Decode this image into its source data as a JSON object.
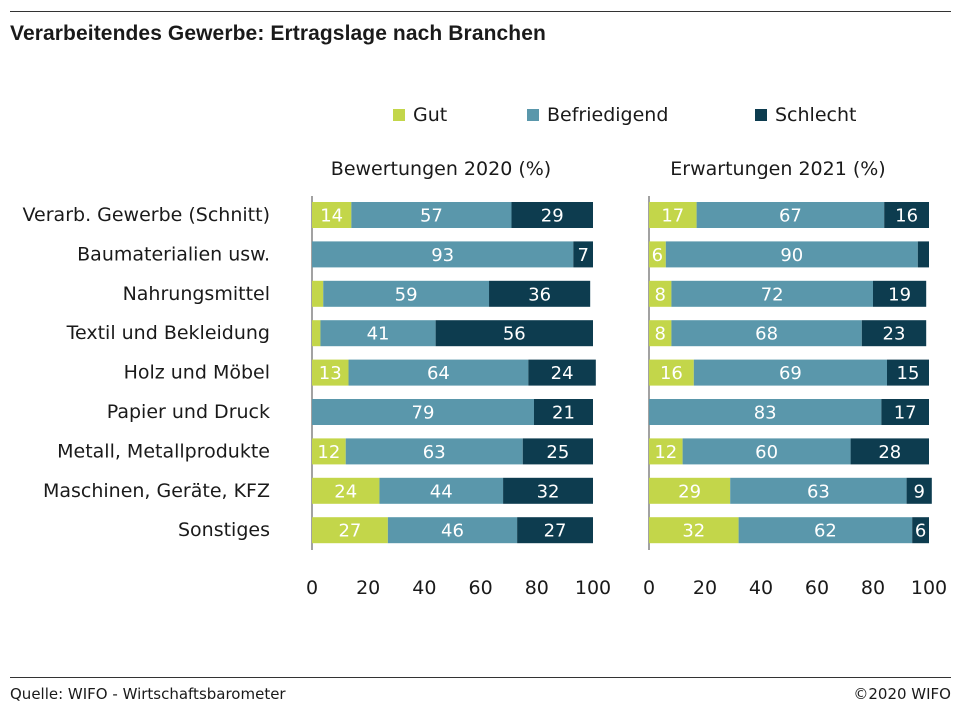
{
  "title": "Verarbeitendes Gewerbe: Ertragslage nach Branchen",
  "footer": {
    "source": "Quelle: WIFO - Wirtschaftsbarometer",
    "copyright": "©2020 WIFO"
  },
  "legend": [
    {
      "label": "Gut",
      "color": "#c3d64a"
    },
    {
      "label": "Befriedigend",
      "color": "#5a97ab"
    },
    {
      "label": "Schlecht",
      "color": "#0d3c4f"
    }
  ],
  "chart_data": [
    {
      "type": "bar",
      "orientation": "horizontal-stacked",
      "title": "Bewertungen 2020 (%)",
      "categories": [
        "Verarb. Gewerbe (Schnitt)",
        "Baumaterialien usw.",
        "Nahrungsmittel",
        "Textil und Bekleidung",
        "Holz und Möbel",
        "Papier und Druck",
        "Metall, Metallprodukte",
        "Maschinen, Geräte, KFZ",
        "Sonstiges"
      ],
      "series": [
        {
          "name": "Gut",
          "values": [
            14,
            0,
            4,
            3,
            13,
            0,
            12,
            24,
            27
          ],
          "labels": [
            "14",
            "",
            "",
            "",
            "13",
            "",
            "12",
            "24",
            "27"
          ]
        },
        {
          "name": "Befriedigend",
          "values": [
            57,
            93,
            59,
            41,
            64,
            79,
            63,
            44,
            46
          ],
          "labels": [
            "57",
            "93",
            "59",
            "41",
            "64",
            "79",
            "63",
            "44",
            "46"
          ]
        },
        {
          "name": "Schlecht",
          "values": [
            29,
            7,
            36,
            56,
            24,
            21,
            25,
            32,
            27
          ],
          "labels": [
            "29",
            "7",
            "36",
            "56",
            "24",
            "21",
            "25",
            "32",
            "27"
          ]
        }
      ],
      "xlim": [
        0,
        100
      ],
      "xticks": [
        "0",
        "20",
        "40",
        "60",
        "80",
        "100"
      ]
    },
    {
      "type": "bar",
      "orientation": "horizontal-stacked",
      "title": "Erwartungen 2021 (%)",
      "categories": [
        "Verarb. Gewerbe (Schnitt)",
        "Baumaterialien usw.",
        "Nahrungsmittel",
        "Textil und Bekleidung",
        "Holz und Möbel",
        "Papier und Druck",
        "Metall, Metallprodukte",
        "Maschinen, Geräte, KFZ",
        "Sonstiges"
      ],
      "series": [
        {
          "name": "Gut",
          "values": [
            17,
            6,
            8,
            8,
            16,
            0,
            12,
            29,
            32
          ],
          "labels": [
            "17",
            "6",
            "8",
            "8",
            "16",
            "",
            "12",
            "29",
            "32"
          ]
        },
        {
          "name": "Befriedigend",
          "values": [
            67,
            90,
            72,
            68,
            69,
            83,
            60,
            63,
            62
          ],
          "labels": [
            "67",
            "90",
            "72",
            "68",
            "69",
            "83",
            "60",
            "63",
            "62"
          ]
        },
        {
          "name": "Schlecht",
          "values": [
            16,
            4,
            19,
            23,
            15,
            17,
            28,
            9,
            6
          ],
          "labels": [
            "16",
            "",
            "19",
            "23",
            "15",
            "17",
            "28",
            "9",
            "6"
          ]
        }
      ],
      "xlim": [
        0,
        100
      ],
      "xticks": [
        "0",
        "20",
        "40",
        "60",
        "80",
        "100"
      ]
    }
  ]
}
